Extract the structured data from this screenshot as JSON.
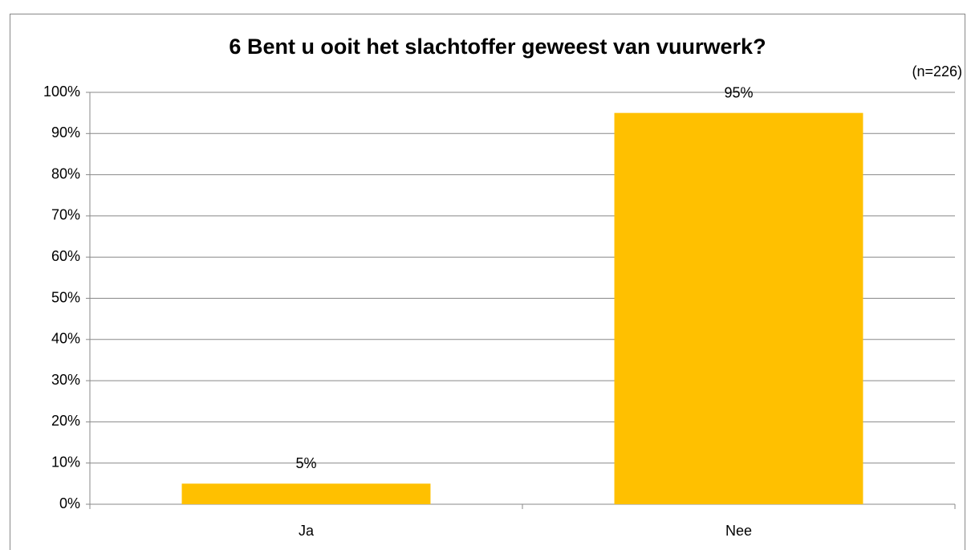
{
  "chart_data": {
    "type": "bar",
    "title": "6 Bent u ooit het slachtoffer geweest van vuurwerk?",
    "annotation": "(n=226)",
    "categories": [
      "Ja",
      "Nee"
    ],
    "values": [
      5,
      95
    ],
    "value_labels": [
      "5%",
      "95%"
    ],
    "color": "#ffc000",
    "ylim": [
      0,
      100
    ],
    "yticks": [
      {
        "value": 0,
        "label": "0%"
      },
      {
        "value": 10,
        "label": "10%"
      },
      {
        "value": 20,
        "label": "20%"
      },
      {
        "value": 30,
        "label": "30%"
      },
      {
        "value": 40,
        "label": "40%"
      },
      {
        "value": 50,
        "label": "50%"
      },
      {
        "value": 60,
        "label": "60%"
      },
      {
        "value": 70,
        "label": "70%"
      },
      {
        "value": 80,
        "label": "80%"
      },
      {
        "value": 90,
        "label": "90%"
      },
      {
        "value": 100,
        "label": "100%"
      }
    ],
    "grid": true
  }
}
